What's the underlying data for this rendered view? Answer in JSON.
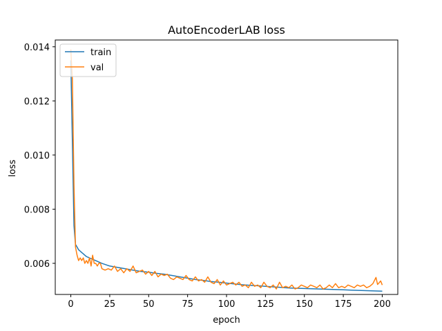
{
  "chart_data": {
    "type": "line",
    "title": "AutoEncoderLAB loss",
    "xlabel": "epoch",
    "ylabel": "loss",
    "xlim": [
      -10,
      210
    ],
    "ylim": [
      0.00485,
      0.01425
    ],
    "x_ticks": [
      0,
      25,
      50,
      75,
      100,
      125,
      150,
      175,
      200
    ],
    "x_tick_labels": [
      "0",
      "25",
      "50",
      "75",
      "100",
      "125",
      "150",
      "175",
      "200"
    ],
    "y_ticks": [
      0.006,
      0.008,
      0.01,
      0.012,
      0.014
    ],
    "y_tick_labels": [
      "0.006",
      "0.008",
      "0.010",
      "0.012",
      "0.014"
    ],
    "grid": false,
    "legend": {
      "position": "upper-left",
      "entries": [
        "train",
        "val"
      ]
    },
    "series": [
      {
        "name": "train",
        "color": "#1f77b4",
        "x": [
          0,
          1,
          2,
          3,
          4,
          5,
          6,
          7,
          8,
          9,
          10,
          12,
          14,
          16,
          18,
          20,
          25,
          30,
          35,
          40,
          45,
          50,
          55,
          60,
          65,
          70,
          75,
          80,
          85,
          90,
          95,
          100,
          105,
          110,
          115,
          120,
          125,
          130,
          135,
          140,
          145,
          150,
          155,
          160,
          165,
          170,
          175,
          180,
          185,
          190,
          195,
          200
        ],
        "values": [
          0.0135,
          0.0105,
          0.0074,
          0.0067,
          0.0066,
          0.0065,
          0.00645,
          0.0064,
          0.00635,
          0.0063,
          0.00625,
          0.0062,
          0.00615,
          0.0061,
          0.00605,
          0.006,
          0.0059,
          0.00585,
          0.0058,
          0.00575,
          0.0057,
          0.00567,
          0.00563,
          0.0056,
          0.00555,
          0.0055,
          0.00545,
          0.0054,
          0.00537,
          0.00533,
          0.0053,
          0.00527,
          0.00524,
          0.00521,
          0.00519,
          0.00517,
          0.00515,
          0.00513,
          0.00511,
          0.00509,
          0.00508,
          0.00507,
          0.00506,
          0.00505,
          0.00504,
          0.00503,
          0.00502,
          0.00501,
          0.005,
          0.00499,
          0.00498,
          0.00497
        ]
      },
      {
        "name": "val",
        "color": "#ff7f0e",
        "x": [
          0,
          1,
          2,
          3,
          4,
          5,
          6,
          7,
          8,
          9,
          10,
          11,
          12,
          13,
          14,
          15,
          16,
          17,
          18,
          19,
          20,
          22,
          24,
          26,
          28,
          30,
          32,
          34,
          36,
          38,
          40,
          42,
          44,
          46,
          48,
          50,
          52,
          54,
          56,
          58,
          60,
          62,
          64,
          66,
          68,
          70,
          72,
          74,
          76,
          78,
          80,
          82,
          84,
          86,
          88,
          90,
          92,
          94,
          96,
          98,
          100,
          102,
          104,
          106,
          108,
          110,
          112,
          114,
          116,
          118,
          120,
          122,
          124,
          126,
          128,
          130,
          132,
          134,
          136,
          138,
          140,
          142,
          144,
          146,
          148,
          150,
          152,
          154,
          156,
          158,
          160,
          162,
          164,
          166,
          168,
          170,
          172,
          174,
          176,
          178,
          180,
          182,
          184,
          186,
          188,
          190,
          192,
          194,
          196,
          197,
          198,
          199,
          200
        ],
        "values": [
          0.0139,
          0.0128,
          0.0089,
          0.0066,
          0.0063,
          0.0061,
          0.0062,
          0.0061,
          0.0062,
          0.006,
          0.0061,
          0.006,
          0.0062,
          0.0059,
          0.0063,
          0.006,
          0.006,
          0.0059,
          0.006,
          0.006,
          0.0058,
          0.00575,
          0.0058,
          0.00575,
          0.0059,
          0.0057,
          0.0058,
          0.00565,
          0.0058,
          0.0057,
          0.0059,
          0.00565,
          0.0057,
          0.00575,
          0.0056,
          0.0057,
          0.00555,
          0.0057,
          0.0055,
          0.0056,
          0.00555,
          0.0056,
          0.00545,
          0.0054,
          0.0055,
          0.00545,
          0.0054,
          0.00555,
          0.0054,
          0.00535,
          0.0055,
          0.00535,
          0.0054,
          0.0053,
          0.0055,
          0.0053,
          0.00525,
          0.0054,
          0.0052,
          0.00535,
          0.0052,
          0.00525,
          0.0053,
          0.0052,
          0.0053,
          0.00515,
          0.0052,
          0.0051,
          0.0053,
          0.00515,
          0.0052,
          0.0051,
          0.0053,
          0.00515,
          0.0051,
          0.0052,
          0.00505,
          0.0053,
          0.0051,
          0.00515,
          0.0051,
          0.0052,
          0.00505,
          0.0051,
          0.0052,
          0.00515,
          0.0051,
          0.0052,
          0.00515,
          0.0051,
          0.0052,
          0.00505,
          0.0051,
          0.0052,
          0.0051,
          0.00525,
          0.0051,
          0.00515,
          0.0051,
          0.0052,
          0.00515,
          0.0051,
          0.0052,
          0.00515,
          0.0052,
          0.0051,
          0.00515,
          0.00525,
          0.00548,
          0.00522,
          0.00528,
          0.00535,
          0.0052
        ]
      }
    ]
  }
}
